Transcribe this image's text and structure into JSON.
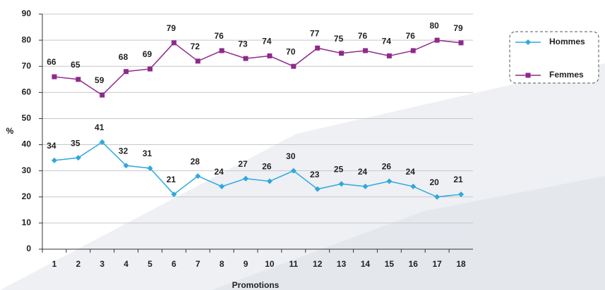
{
  "chart_data": {
    "type": "line",
    "categories": [
      1,
      2,
      3,
      4,
      5,
      6,
      7,
      8,
      9,
      10,
      11,
      12,
      13,
      14,
      15,
      16,
      17,
      18
    ],
    "series": [
      {
        "name": "Hommes",
        "color": "#2fa8dc",
        "marker": "diamond",
        "values": [
          34,
          35,
          41,
          32,
          31,
          21,
          28,
          24,
          27,
          26,
          30,
          23,
          25,
          24,
          26,
          24,
          20,
          21
        ]
      },
      {
        "name": "Femmes",
        "color": "#8e2a8c",
        "marker": "square",
        "values": [
          66,
          65,
          59,
          68,
          69,
          79,
          72,
          76,
          73,
          74,
          70,
          77,
          75,
          76,
          74,
          76,
          80,
          79
        ]
      }
    ],
    "ylabel": "%",
    "xlabel": "Promotions",
    "ylim": [
      0,
      90
    ],
    "yticks": [
      0,
      10,
      20,
      30,
      40,
      50,
      60,
      70,
      80,
      90
    ],
    "grid": true,
    "legend": "right"
  }
}
